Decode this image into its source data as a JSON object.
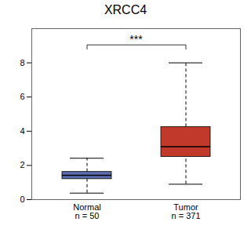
{
  "chart_data": {
    "type": "box",
    "title": "XRCC4",
    "categories": [
      "Normal",
      "Tumor"
    ],
    "median": [
      1.42,
      3.1
    ],
    "q1": [
      1.2,
      2.5
    ],
    "q3": [
      1.62,
      4.25
    ],
    "whislo": [
      0.38,
      0.9
    ],
    "whishi": [
      2.42,
      8.0
    ],
    "colors": [
      "#5B6DAE",
      "#C0392B"
    ],
    "n_labels": [
      "n = 50",
      "n = 371"
    ],
    "significance_text": "***",
    "ylim": [
      0,
      10.0
    ],
    "yticks": [
      0,
      2,
      4,
      6,
      8
    ],
    "grid": false
  }
}
